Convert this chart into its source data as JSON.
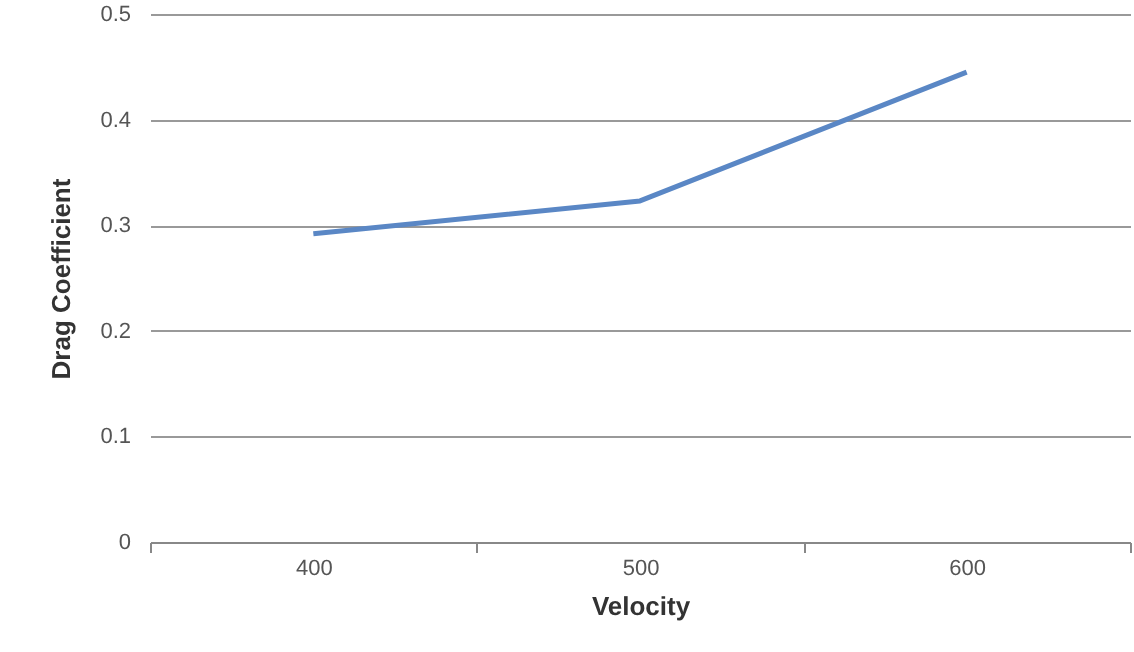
{
  "chart_data": {
    "type": "line",
    "xlabel": "Velocity",
    "ylabel": "Drag Coefficient",
    "categories": [
      "400",
      "500",
      "600"
    ],
    "series": [
      {
        "color": "#5a87c5",
        "values": [
          0.292,
          0.323,
          0.445
        ]
      }
    ],
    "ylim": [
      0,
      0.5
    ],
    "yticks": [
      0,
      0.1,
      0.2,
      0.3,
      0.4,
      0.5
    ],
    "grid": "y",
    "marker": "none",
    "line_style": "solid"
  }
}
